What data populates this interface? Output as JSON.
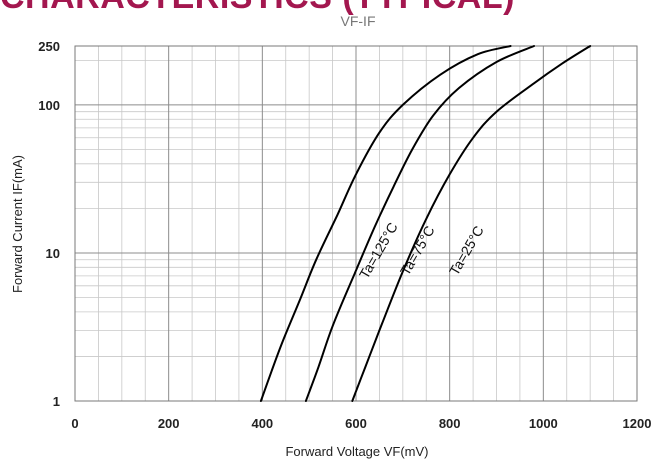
{
  "page": {
    "banner": "CHARACTERISTICS (TYPICAL)",
    "banner_color": "#a3174f"
  },
  "chart_data": {
    "type": "line",
    "title": "VF-IF",
    "xlabel": "Forward Voltage  VF(mV)",
    "ylabel": "Forward Current  IF(mA)",
    "xlim": [
      0,
      1200
    ],
    "ylim": [
      1,
      250
    ],
    "yscale": "log",
    "xticks": [
      0,
      200,
      400,
      600,
      800,
      1000,
      1200
    ],
    "yticks": [
      1,
      10,
      100,
      250
    ],
    "grid": true,
    "line_color": "#000000",
    "series": [
      {
        "name": "Ta=125°C",
        "points": [
          [
            397,
            1
          ],
          [
            420,
            1.6
          ],
          [
            445,
            2.6
          ],
          [
            480,
            4.8
          ],
          [
            515,
            9
          ],
          [
            560,
            18
          ],
          [
            600,
            34
          ],
          [
            650,
            65
          ],
          [
            700,
            100
          ],
          [
            780,
            160
          ],
          [
            860,
            220
          ],
          [
            930,
            250
          ]
        ],
        "label_at": [
          657,
          10
        ]
      },
      {
        "name": "Ta=75°C",
        "points": [
          [
            493,
            1
          ],
          [
            520,
            1.7
          ],
          [
            550,
            3.2
          ],
          [
            595,
            7
          ],
          [
            640,
            15
          ],
          [
            680,
            28
          ],
          [
            720,
            50
          ],
          [
            765,
            85
          ],
          [
            820,
            130
          ],
          [
            900,
            195
          ],
          [
            980,
            250
          ]
        ],
        "label_at": [
          740,
          10
        ]
      },
      {
        "name": "Ta=25°C",
        "points": [
          [
            592,
            1
          ],
          [
            620,
            1.7
          ],
          [
            650,
            3
          ],
          [
            700,
            7.5
          ],
          [
            750,
            17
          ],
          [
            800,
            34
          ],
          [
            850,
            60
          ],
          [
            900,
            90
          ],
          [
            980,
            140
          ],
          [
            1040,
            190
          ],
          [
            1100,
            250
          ]
        ],
        "label_at": [
          845,
          10
        ]
      }
    ]
  }
}
